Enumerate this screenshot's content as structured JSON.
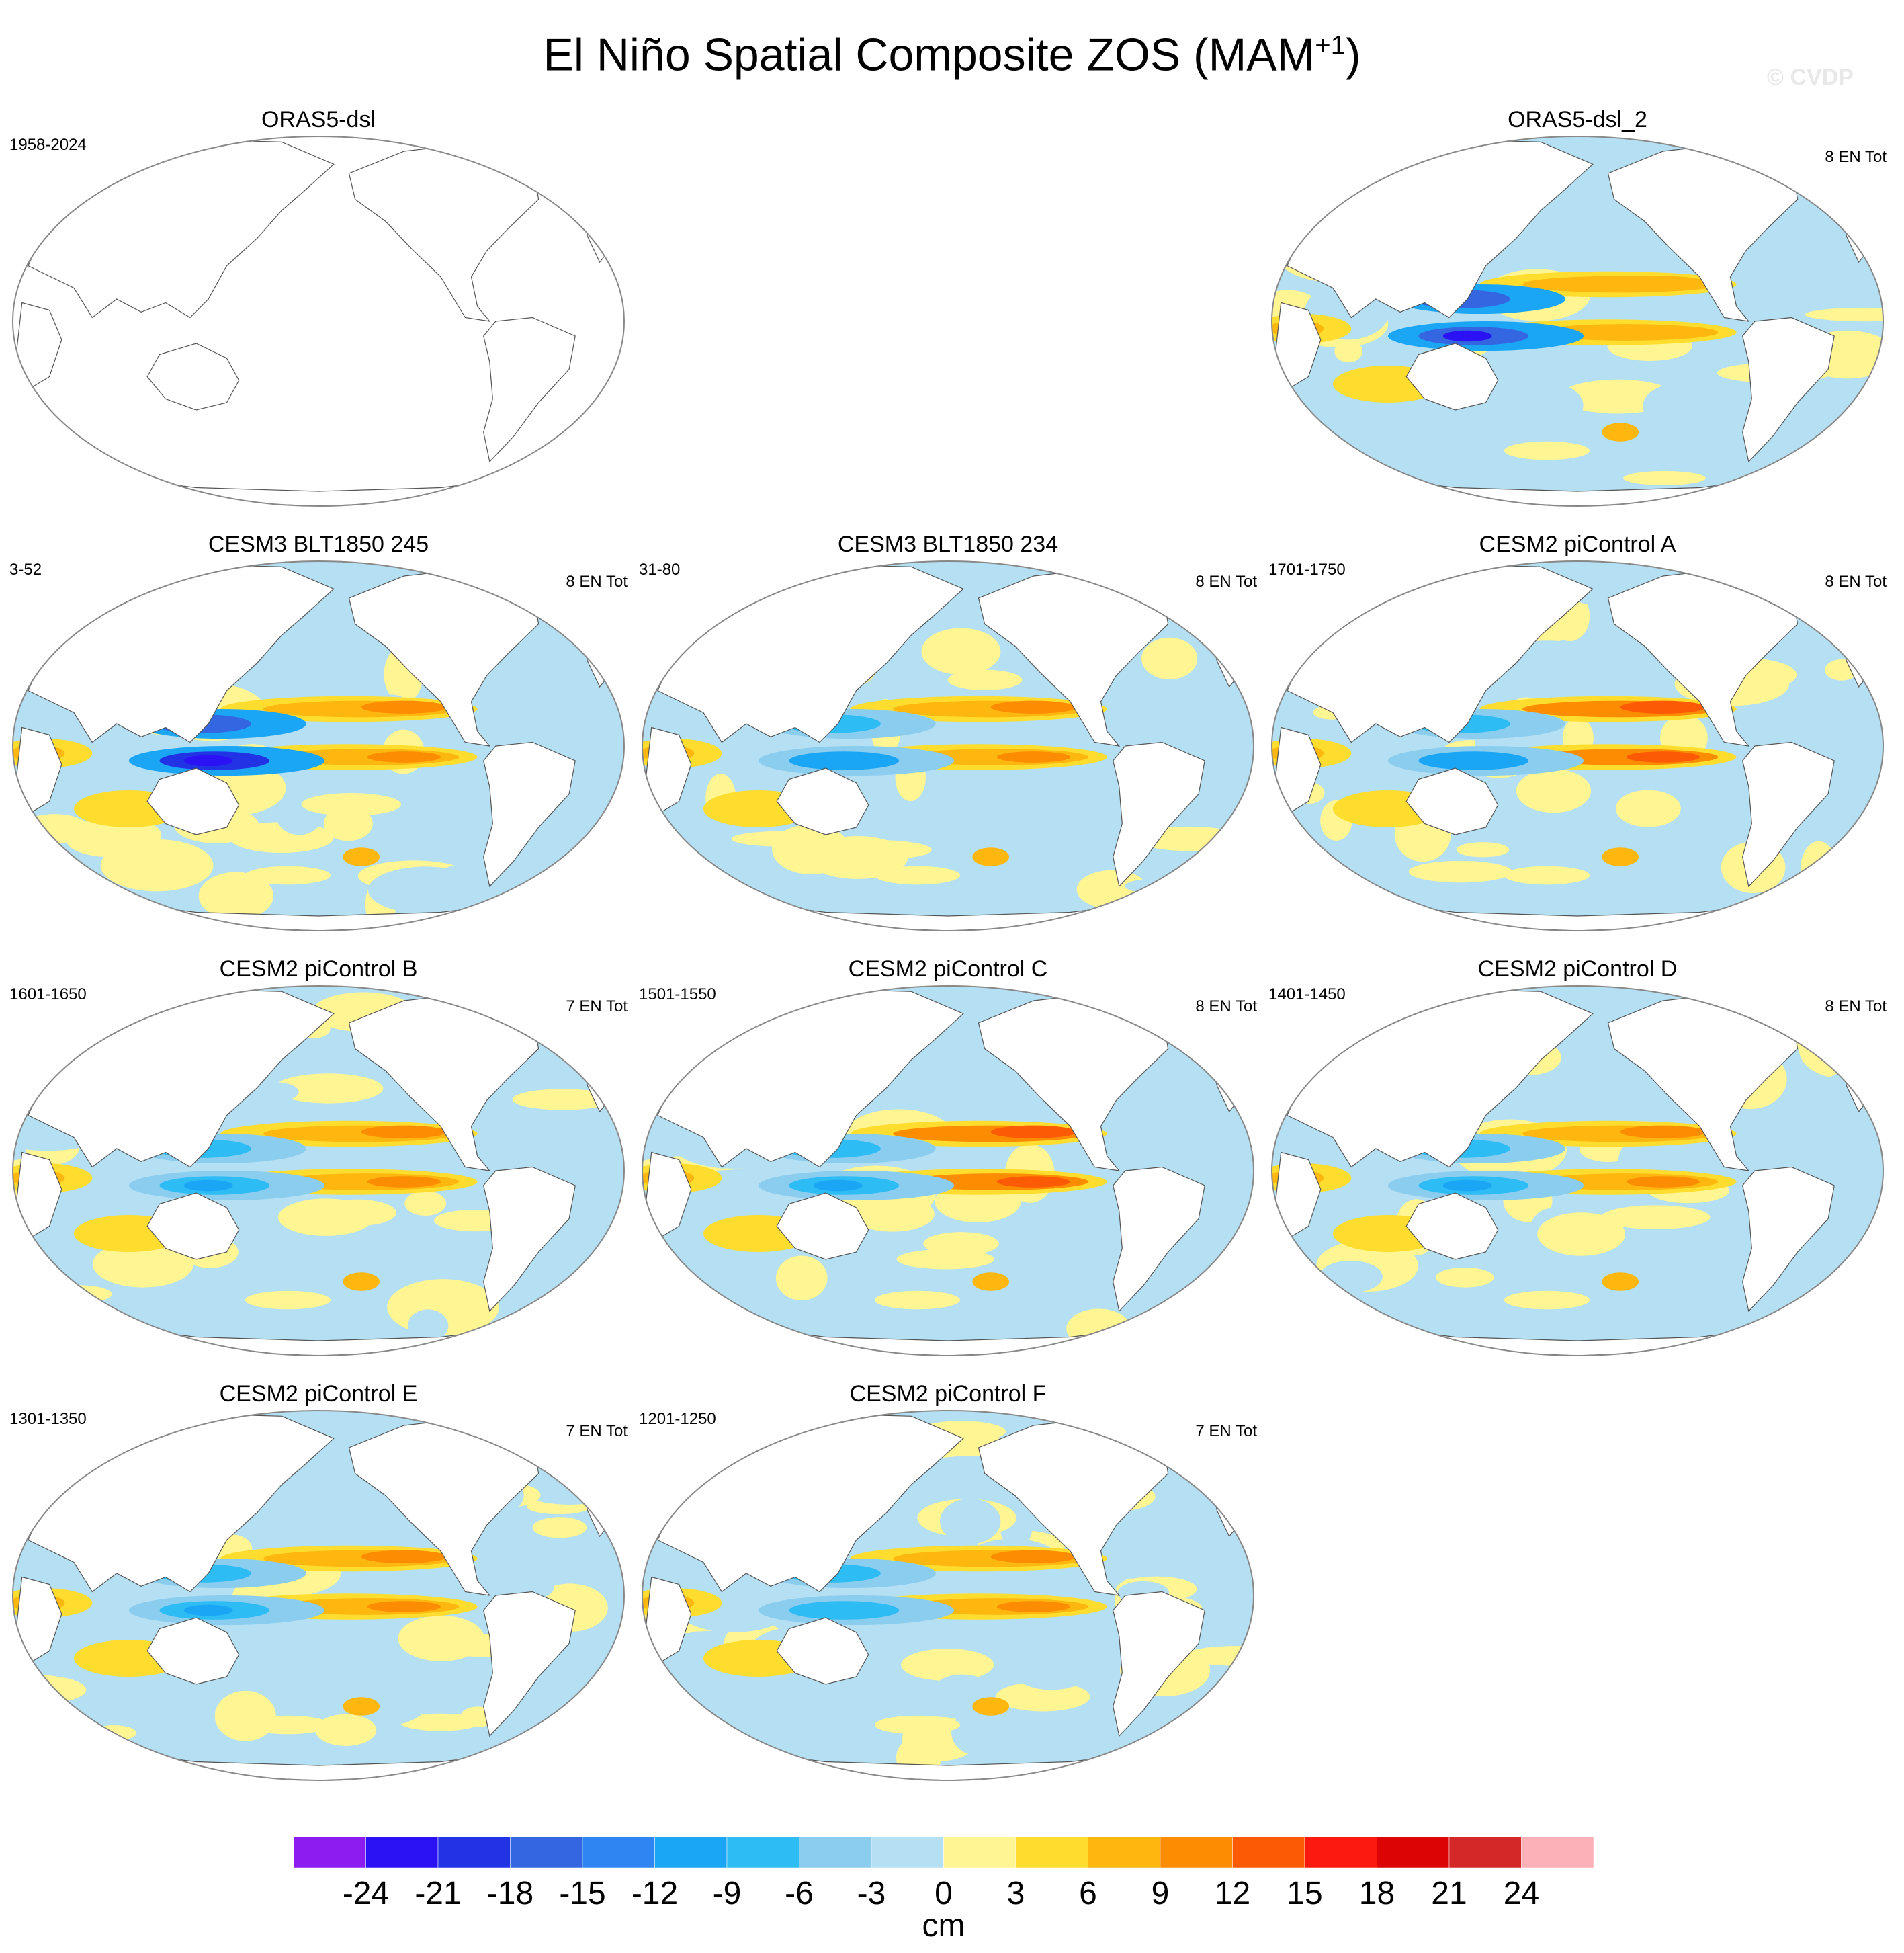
{
  "figure": {
    "title_main": "El Niño Spatial Composite ZOS (MAM",
    "title_sup": "+1",
    "title_close": ")",
    "watermark": "© CVDP"
  },
  "colorbar": {
    "unit": "cm",
    "ticks": [
      "-24",
      "-21",
      "-18",
      "-15",
      "-12",
      "-9",
      "-6",
      "-3",
      "0",
      "3",
      "6",
      "9",
      "12",
      "15",
      "18",
      "21",
      "24"
    ],
    "colors": [
      "#8c1cf0",
      "#2a12f5",
      "#2233e6",
      "#3366e0",
      "#2f86f2",
      "#1aa6f5",
      "#2ebcf4",
      "#8acdef",
      "#b5dff2",
      "#fff592",
      "#fedd2e",
      "#fdb70f",
      "#fc8c02",
      "#fc5a04",
      "#fc1a10",
      "#dc0404",
      "#d42828",
      "#fcb0b8"
    ]
  },
  "chart_data": [
    {
      "type": "heatmap",
      "title": "ORAS5-dsl",
      "left_label": "1958-2024",
      "right_label": "",
      "data": "blank"
    },
    {
      "type": "heatmap",
      "title": "ORAS5-dsl_2",
      "left_label": "",
      "right_label": "8 EN Tot",
      "peak_neg_cm": -22,
      "peak_pos_cm": 8
    },
    {
      "type": "heatmap",
      "title": "CESM3 BLT1850 245",
      "left_label": "3-52",
      "right_label": "8 EN Tot",
      "peak_neg_cm": -23,
      "peak_pos_cm": 10
    },
    {
      "type": "heatmap",
      "title": "CESM3 BLT1850 234",
      "left_label": "31-80",
      "right_label": "8 EN Tot",
      "peak_neg_cm": -12,
      "peak_pos_cm": 10
    },
    {
      "type": "heatmap",
      "title": "CESM2 piControl A",
      "left_label": "1701-1750",
      "right_label": "8 EN Tot",
      "peak_neg_cm": -12,
      "peak_pos_cm": 12
    },
    {
      "type": "heatmap",
      "title": "CESM2 piControl B",
      "left_label": "1601-1650",
      "right_label": "7 EN Tot",
      "peak_neg_cm": -11,
      "peak_pos_cm": 11
    },
    {
      "type": "heatmap",
      "title": "CESM2 piControl C",
      "left_label": "1501-1550",
      "right_label": "8 EN Tot",
      "peak_neg_cm": -11,
      "peak_pos_cm": 12
    },
    {
      "type": "heatmap",
      "title": "CESM2 piControl D",
      "left_label": "1401-1450",
      "right_label": "8 EN Tot",
      "peak_neg_cm": -11,
      "peak_pos_cm": 10
    },
    {
      "type": "heatmap",
      "title": "CESM2 piControl E",
      "left_label": "1301-1350",
      "right_label": "7 EN Tot",
      "peak_neg_cm": -10,
      "peak_pos_cm": 9
    },
    {
      "type": "heatmap",
      "title": "CESM2 piControl F",
      "left_label": "1201-1250",
      "right_label": "7 EN Tot",
      "peak_neg_cm": -9,
      "peak_pos_cm": 9
    }
  ]
}
